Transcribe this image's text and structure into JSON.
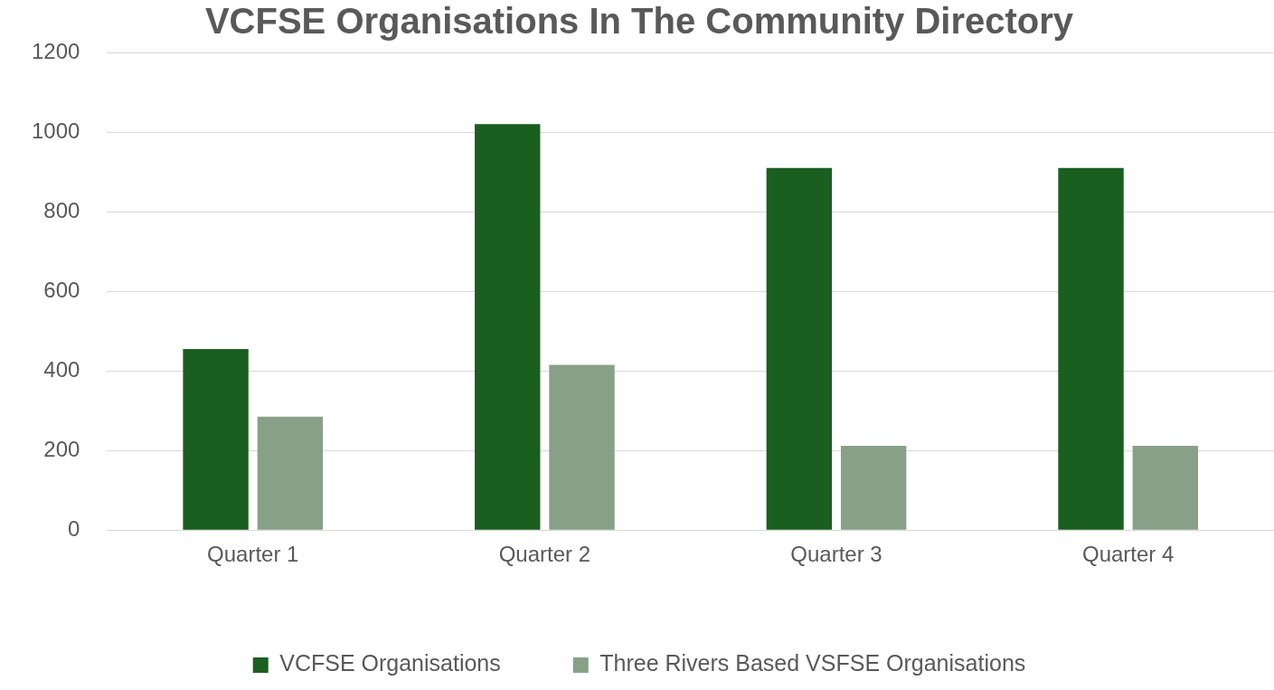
{
  "chart_data": {
    "type": "bar",
    "title": "VCFSE Organisations In The Community Directory",
    "categories": [
      "Quarter 1",
      "Quarter 2",
      "Quarter 3",
      "Quarter 4"
    ],
    "series": [
      {
        "name": "VCFSE Organisations",
        "color": "#1a5e20",
        "values": [
          455,
          1020,
          910,
          910
        ]
      },
      {
        "name": "Three Rivers Based VSFSE Organisations",
        "color": "#88a088",
        "values": [
          285,
          415,
          212,
          212
        ]
      }
    ],
    "ylim": [
      0,
      1200
    ],
    "yticks": [
      0,
      200,
      400,
      600,
      800,
      1000,
      1200
    ],
    "grid": "y",
    "legend": "bottom"
  }
}
